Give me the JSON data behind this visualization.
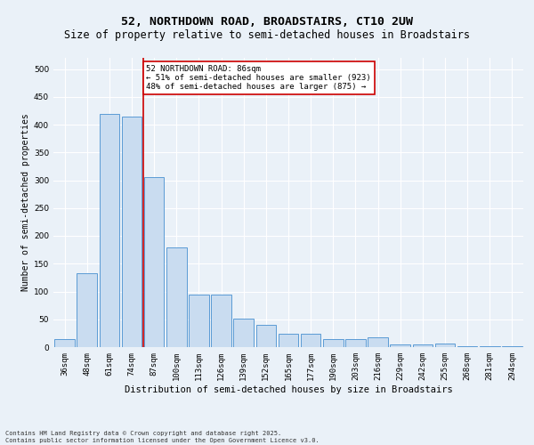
{
  "title1": "52, NORTHDOWN ROAD, BROADSTAIRS, CT10 2UW",
  "title2": "Size of property relative to semi-detached houses in Broadstairs",
  "xlabel": "Distribution of semi-detached houses by size in Broadstairs",
  "ylabel": "Number of semi-detached properties",
  "categories": [
    "36sqm",
    "48sqm",
    "61sqm",
    "74sqm",
    "87sqm",
    "100sqm",
    "113sqm",
    "126sqm",
    "139sqm",
    "152sqm",
    "165sqm",
    "177sqm",
    "190sqm",
    "203sqm",
    "216sqm",
    "229sqm",
    "242sqm",
    "255sqm",
    "268sqm",
    "281sqm",
    "294sqm"
  ],
  "values": [
    14,
    133,
    420,
    415,
    305,
    180,
    95,
    95,
    52,
    40,
    24,
    24,
    15,
    15,
    18,
    5,
    5,
    7,
    1,
    1,
    2
  ],
  "bar_color": "#c9dcf0",
  "bar_edge_color": "#5b9bd5",
  "property_bin_index": 4,
  "vline_color": "#cc0000",
  "annotation_text": "52 NORTHDOWN ROAD: 86sqm\n← 51% of semi-detached houses are smaller (923)\n48% of semi-detached houses are larger (875) →",
  "annotation_box_color": "#ffffff",
  "annotation_box_edge": "#cc0000",
  "footer": "Contains HM Land Registry data © Crown copyright and database right 2025.\nContains public sector information licensed under the Open Government Licence v3.0.",
  "ylim_max": 520,
  "yticks": [
    0,
    50,
    100,
    150,
    200,
    250,
    300,
    350,
    400,
    450,
    500
  ],
  "background_color": "#eaf1f8",
  "grid_color": "#ffffff",
  "title1_fontsize": 9.5,
  "title2_fontsize": 8.5,
  "xlabel_fontsize": 7.5,
  "ylabel_fontsize": 7,
  "tick_fontsize": 6.5,
  "annot_fontsize": 6.5,
  "footer_fontsize": 5,
  "bar_width": 0.9
}
